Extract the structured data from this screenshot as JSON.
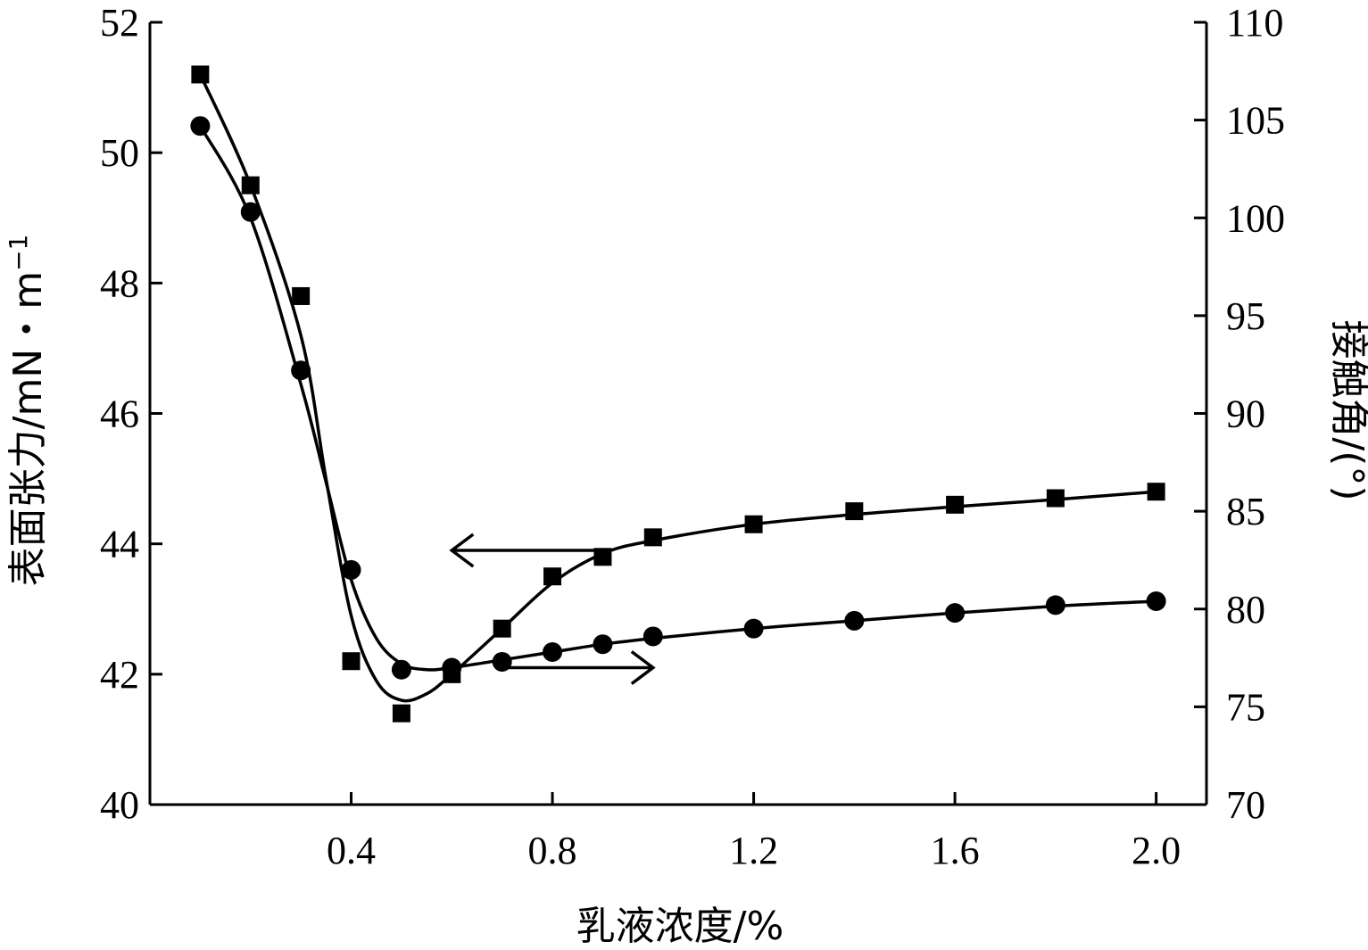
{
  "chart_data": {
    "type": "line",
    "xlabel": "乳液浓度/%",
    "ylabel_left": "表面张力/mN・m",
    "ylabel_left_sup": "−1",
    "ylabel_right": "接触角/(°)",
    "x_ticks": [
      "0.4",
      "0.8",
      "1.2",
      "1.6",
      "2.0"
    ],
    "x_tick_values": [
      0.4,
      0.8,
      1.2,
      1.6,
      2.0
    ],
    "y_left_ticks": [
      "40",
      "42",
      "44",
      "46",
      "48",
      "50",
      "52"
    ],
    "y_left_tick_values": [
      40,
      42,
      44,
      46,
      48,
      50,
      52
    ],
    "y_right_ticks": [
      "70",
      "75",
      "80",
      "85",
      "90",
      "95",
      "100",
      "105",
      "110"
    ],
    "y_right_tick_values": [
      70,
      75,
      80,
      85,
      90,
      95,
      100,
      105,
      110
    ],
    "xlim": [
      0.0,
      2.1
    ],
    "ylim_left": [
      40,
      52
    ],
    "ylim_right": [
      70,
      110
    ],
    "series": [
      {
        "axis": "left",
        "marker": "square",
        "x": [
          0.1,
          0.2,
          0.3,
          0.4,
          0.5,
          0.6,
          0.7,
          0.8,
          0.9,
          1.0,
          1.2,
          1.4,
          1.6,
          1.8,
          2.0
        ],
        "y": [
          51.2,
          49.5,
          47.8,
          42.2,
          41.4,
          42.0,
          42.7,
          43.5,
          43.8,
          44.1,
          44.3,
          44.5,
          44.6,
          44.7,
          44.8
        ]
      },
      {
        "axis": "right",
        "marker": "circle",
        "x": [
          0.1,
          0.2,
          0.3,
          0.4,
          0.5,
          0.6,
          0.7,
          0.8,
          0.9,
          1.0,
          1.2,
          1.4,
          1.6,
          1.8,
          2.0
        ],
        "y": [
          104.7,
          100.3,
          92.2,
          82.0,
          76.9,
          77.0,
          77.3,
          77.8,
          78.2,
          78.6,
          79.0,
          79.4,
          79.8,
          80.2,
          80.4
        ]
      }
    ],
    "fit_curves": [
      {
        "axis": "left",
        "x": [
          0.1,
          0.2,
          0.3,
          0.35,
          0.4,
          0.45,
          0.5,
          0.55,
          0.6,
          0.7,
          0.8,
          0.9,
          1.0,
          1.2,
          1.4,
          1.6,
          1.8,
          2.0
        ],
        "y": [
          51.2,
          49.5,
          47.2,
          45.0,
          42.9,
          41.9,
          41.6,
          41.7,
          42.0,
          42.7,
          43.4,
          43.85,
          44.05,
          44.3,
          44.45,
          44.57,
          44.68,
          44.8
        ]
      },
      {
        "axis": "right",
        "x": [
          0.1,
          0.2,
          0.3,
          0.35,
          0.4,
          0.45,
          0.5,
          0.55,
          0.6,
          0.7,
          0.8,
          0.9,
          1.0,
          1.2,
          1.4,
          1.6,
          1.8,
          2.0
        ],
        "y": [
          104.7,
          100.0,
          91.5,
          86.5,
          81.5,
          78.5,
          77.2,
          76.9,
          77.0,
          77.4,
          77.8,
          78.2,
          78.5,
          79.0,
          79.4,
          79.8,
          80.15,
          80.4
        ]
      }
    ],
    "annotations": [
      {
        "type": "arrow",
        "direction": "left",
        "points_to": "left-axis",
        "x_from": 0.9,
        "x_to": 0.6,
        "y_left": 43.9
      },
      {
        "type": "arrow",
        "direction": "right",
        "points_to": "right-axis",
        "x_from": 0.7,
        "x_to": 1.0,
        "y_left": 42.1
      }
    ]
  }
}
